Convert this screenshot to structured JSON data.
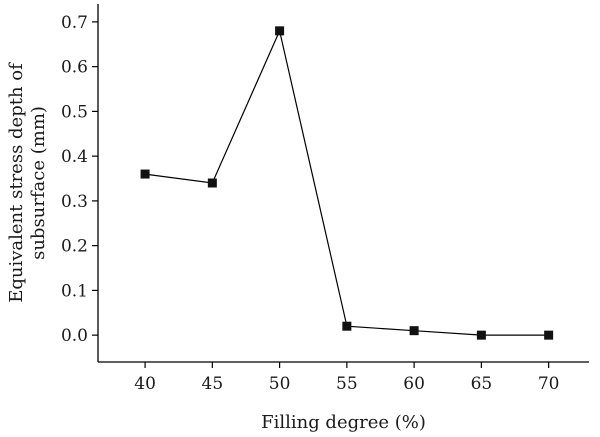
{
  "chart_data": {
    "type": "line",
    "title": "",
    "xlabel": "Filling degree (%)",
    "ylabel_lines": [
      "Equivalent stress depth of",
      "subsurface (mm)"
    ],
    "x": [
      40,
      45,
      50,
      55,
      60,
      65,
      70
    ],
    "series": [
      {
        "values": [
          0.36,
          0.34,
          0.68,
          0.02,
          0.01,
          0.0,
          0.0
        ]
      }
    ],
    "xticks": [
      "40",
      "45",
      "50",
      "55",
      "60",
      "65",
      "70"
    ],
    "yticks": [
      "0.0",
      "0.1",
      "0.2",
      "0.3",
      "0.4",
      "0.5",
      "0.6",
      "0.7"
    ],
    "xlim": [
      36.5,
      73
    ],
    "ylim": [
      -0.06,
      0.74
    ],
    "grid": false,
    "marker": "square",
    "legend": "none"
  }
}
